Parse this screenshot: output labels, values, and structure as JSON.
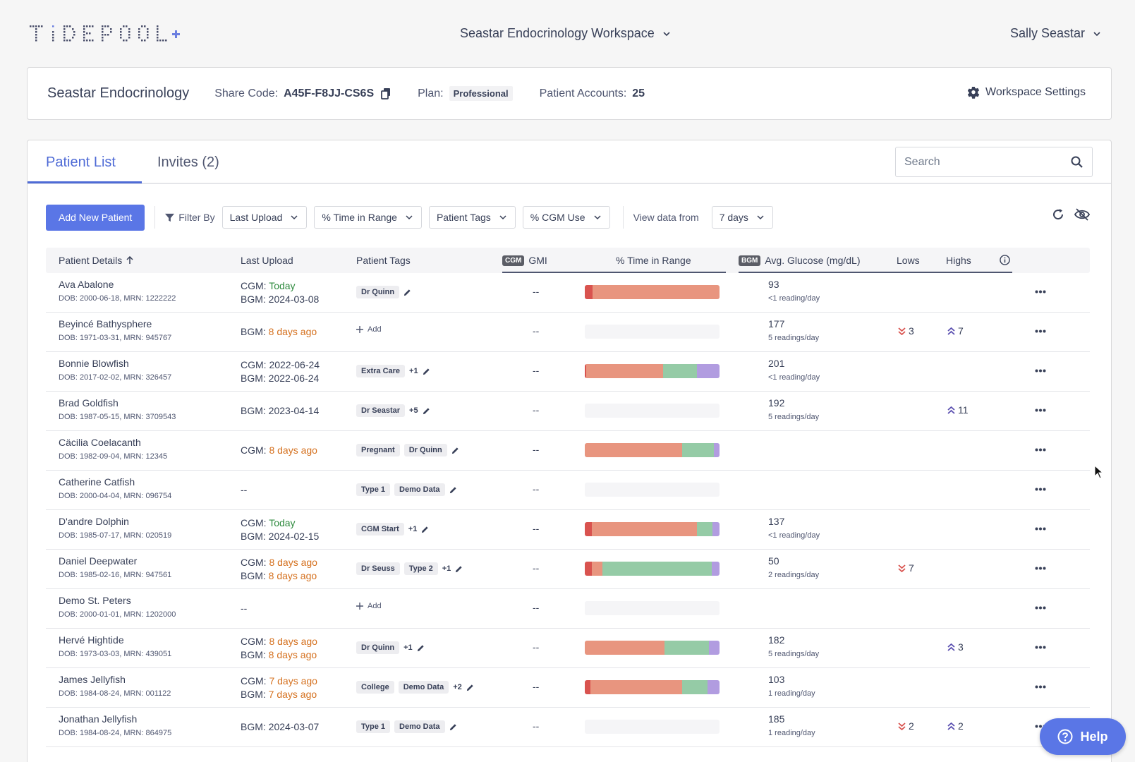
{
  "brand": {
    "logo_text": "TIDEPOOL+",
    "accent": "#5a76e6",
    "tab_accent": "#4f6bd6"
  },
  "header": {
    "workspace": "Seastar Endocrinology Workspace",
    "user": "Sally Seastar"
  },
  "clinic": {
    "name": "Seastar Endocrinology",
    "share_code_label": "Share Code:",
    "share_code": "A45F-F8JJ-CS6S",
    "plan_label": "Plan:",
    "plan": "Professional",
    "accounts_label": "Patient Accounts:",
    "accounts": "25",
    "settings_label": "Workspace Settings"
  },
  "tabs": {
    "patient_list": "Patient List",
    "invites": "Invites (2)"
  },
  "search": {
    "placeholder": "Search"
  },
  "filters": {
    "add_button": "Add New Patient",
    "filter_by": "Filter By",
    "last_upload": "Last Upload",
    "time_in_range": "% Time in Range",
    "patient_tags": "Patient Tags",
    "cgm_use": "% CGM Use",
    "view_from_label": "View data from",
    "view_from_value": "7 days"
  },
  "table": {
    "headers": {
      "patient_details": "Patient Details",
      "last_upload": "Last Upload",
      "patient_tags": "Patient Tags",
      "cgm_badge": "CGM",
      "gmi": "GMI",
      "tir": "% Time in Range",
      "bgm_badge": "BGM",
      "avg_glucose": "Avg. Glucose (mg/dL)",
      "lows": "Lows",
      "highs": "Highs"
    },
    "add_label": "Add",
    "rows": [
      {
        "name": "Ava Abalone",
        "dob": "DOB: 2000-06-18, MRN: 1222222",
        "upload": [
          {
            "l": "CGM: ",
            "v": "Today",
            "c": "green"
          },
          {
            "l": "BGM: ",
            "v": "2024-03-08",
            "c": ""
          }
        ],
        "tags": [
          "Dr Quinn"
        ],
        "more": "",
        "gmi": "--",
        "tir": [
          6,
          94,
          0,
          0,
          0
        ],
        "avg": "93",
        "avg_sub": "<1 reading/day",
        "lows": "",
        "highs": ""
      },
      {
        "name": "Beyincé Bathysphere",
        "dob": "DOB: 1971-03-31, MRN: 945767",
        "upload": [
          {
            "l": "BGM: ",
            "v": "8 days ago",
            "c": "orange"
          }
        ],
        "tags": [],
        "more": "",
        "add": true,
        "gmi": "--",
        "tir": [],
        "avg": "177",
        "avg_sub": "5 readings/day",
        "lows": "3",
        "highs": "7"
      },
      {
        "name": "Bonnie Blowfish",
        "dob": "DOB: 2017-02-02, MRN: 326457",
        "upload": [
          {
            "l": "CGM: ",
            "v": "2022-06-24",
            "c": ""
          },
          {
            "l": "BGM: ",
            "v": "2022-06-24",
            "c": ""
          }
        ],
        "tags": [
          "Extra Care"
        ],
        "more": "+1",
        "gmi": "--",
        "tir": [
          1,
          57,
          25,
          17,
          0
        ],
        "avg": "201",
        "avg_sub": "<1 reading/day",
        "lows": "",
        "highs": ""
      },
      {
        "name": "Brad Goldfish",
        "dob": "DOB: 1987-05-15, MRN: 3709543",
        "upload": [
          {
            "l": "BGM: ",
            "v": "2023-04-14",
            "c": ""
          }
        ],
        "tags": [
          "Dr Seastar"
        ],
        "more": "+5",
        "gmi": "--",
        "tir": [],
        "avg": "192",
        "avg_sub": "5 readings/day",
        "lows": "",
        "highs": "11"
      },
      {
        "name": "Cäcilia Coelacanth",
        "dob": "DOB: 1982-09-04, MRN: 12345",
        "upload": [
          {
            "l": "CGM: ",
            "v": "8 days ago",
            "c": "orange"
          }
        ],
        "tags": [
          "Pregnant",
          "Dr Quinn"
        ],
        "more": "",
        "gmi": "--",
        "tir": [
          0,
          72,
          24,
          4,
          0
        ],
        "avg": "",
        "avg_sub": "",
        "lows": "",
        "highs": ""
      },
      {
        "name": "Catherine Catfish",
        "dob": "DOB: 2000-04-04, MRN: 096754",
        "upload": [
          {
            "l": "",
            "v": "--",
            "c": ""
          }
        ],
        "tags": [
          "Type 1",
          "Demo Data"
        ],
        "more": "",
        "gmi": "--",
        "tir": [],
        "avg": "",
        "avg_sub": "",
        "lows": "",
        "highs": ""
      },
      {
        "name": "D'andre Dolphin",
        "dob": "DOB: 1985-07-17, MRN: 020519",
        "upload": [
          {
            "l": "CGM: ",
            "v": "Today",
            "c": "green"
          },
          {
            "l": "BGM: ",
            "v": "2024-02-15",
            "c": ""
          }
        ],
        "tags": [
          "CGM Start"
        ],
        "more": "+1",
        "gmi": "--",
        "tir": [
          5,
          78,
          12,
          5,
          0
        ],
        "avg": "137",
        "avg_sub": "<1 reading/day",
        "lows": "",
        "highs": ""
      },
      {
        "name": "Daniel Deepwater",
        "dob": "DOB: 1985-02-16, MRN: 947561",
        "upload": [
          {
            "l": "CGM: ",
            "v": "8 days ago",
            "c": "orange"
          },
          {
            "l": "BGM: ",
            "v": "8 days ago",
            "c": "orange"
          }
        ],
        "tags": [
          "Dr Seuss",
          "Type 2"
        ],
        "more": "+1",
        "gmi": "--",
        "tir": [
          5,
          8,
          81,
          6,
          0
        ],
        "tir_mode": "low2",
        "avg": "50",
        "avg_sub": "2 readings/day",
        "lows": "7",
        "highs": ""
      },
      {
        "name": "Demo St. Peters",
        "dob": "DOB: 2000-01-01, MRN: 1202000",
        "upload": [
          {
            "l": "",
            "v": "--",
            "c": ""
          }
        ],
        "tags": [],
        "more": "",
        "add": true,
        "gmi": "--",
        "tir": [],
        "avg": "",
        "avg_sub": "",
        "lows": "",
        "highs": ""
      },
      {
        "name": "Hervé Hightide",
        "dob": "DOB: 1973-03-03, MRN: 439051",
        "upload": [
          {
            "l": "CGM: ",
            "v": "8 days ago",
            "c": "orange"
          },
          {
            "l": "BGM: ",
            "v": "8 days ago",
            "c": "orange"
          }
        ],
        "tags": [
          "Dr Quinn"
        ],
        "more": "+1",
        "gmi": "--",
        "tir": [
          0,
          59,
          33,
          8,
          0
        ],
        "avg": "182",
        "avg_sub": "5 readings/day",
        "lows": "",
        "highs": "3"
      },
      {
        "name": "James Jellyfish",
        "dob": "DOB: 1984-08-24, MRN: 001122",
        "upload": [
          {
            "l": "CGM: ",
            "v": "7 days ago",
            "c": "orange"
          },
          {
            "l": "BGM: ",
            "v": "7 days ago",
            "c": "orange"
          }
        ],
        "tags": [
          "College",
          "Demo Data"
        ],
        "more": "+2",
        "gmi": "--",
        "tir": [
          4,
          68,
          19,
          9,
          0
        ],
        "avg": "103",
        "avg_sub": "1 reading/day",
        "lows": "",
        "highs": ""
      },
      {
        "name": "Jonathan Jellyfish",
        "dob": "DOB: 1984-08-24, MRN: 864975",
        "upload": [
          {
            "l": "BGM: ",
            "v": "2024-03-07",
            "c": ""
          }
        ],
        "tags": [
          "Type 1",
          "Demo Data"
        ],
        "more": "",
        "gmi": "--",
        "tir": [],
        "avg": "185",
        "avg_sub": "1 reading/day",
        "lows": "2",
        "highs": "2"
      }
    ]
  },
  "tir_colors": {
    "very_low": "#d9534f",
    "low": "#e8957f",
    "target": "#95cba6",
    "high": "#b19ce0",
    "very_high": "#7d62cc"
  },
  "help": {
    "label": "Help"
  }
}
